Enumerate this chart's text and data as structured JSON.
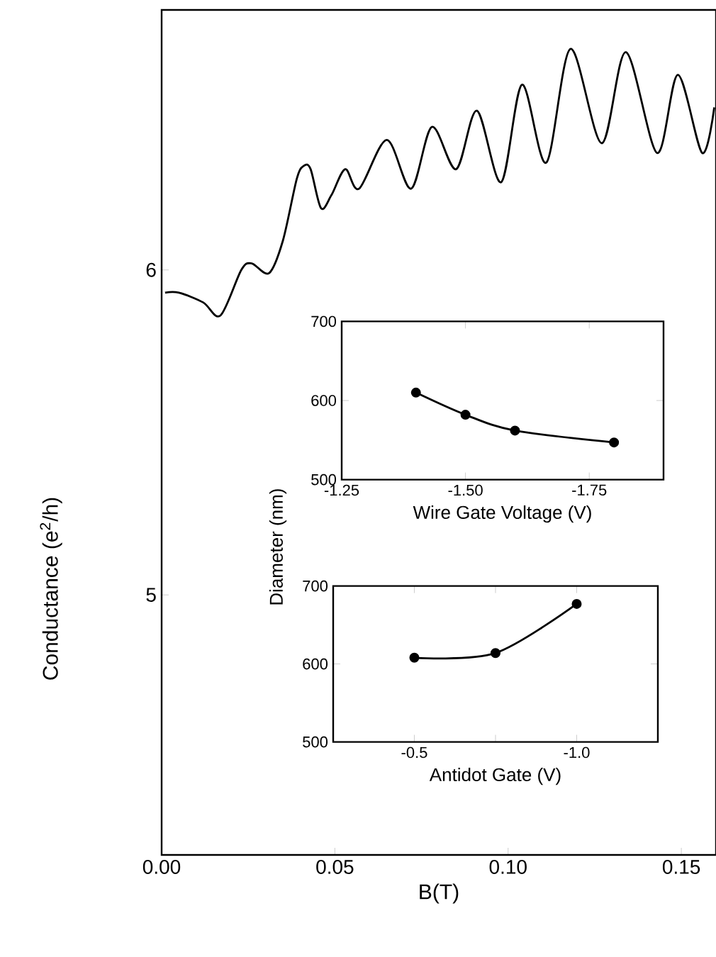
{
  "chart_data": [
    {
      "type": "line",
      "xlabel": "B(T)",
      "ylabel": "Conductance (e$^{2}$/h)",
      "xlim": [
        0,
        0.16
      ],
      "ylim": [
        4.2,
        6.8
      ],
      "xticks": [
        {
          "value": 0,
          "label": "0.00"
        },
        {
          "value": 0.05,
          "label": "0.05"
        },
        {
          "value": 0.1,
          "label": "0.10"
        },
        0.15
      ],
      "yticks": [
        5,
        6
      ],
      "marker": "none",
      "line_style": "solid",
      "series": [
        {
          "color": "#000000",
          "x": [
            0.001,
            0.005,
            0.012,
            0.017,
            0.023,
            0.026,
            0.031,
            0.035,
            0.039,
            0.041,
            0.043,
            0.046,
            0.049,
            0.053,
            0.057,
            0.065,
            0.072,
            0.078,
            0.085,
            0.091,
            0.098,
            0.104,
            0.111,
            0.118,
            0.127,
            0.134,
            0.143,
            0.149,
            0.156,
            0.1595
          ],
          "values": [
            5.93,
            5.93,
            5.9,
            5.86,
            6.0,
            6.02,
            5.99,
            6.09,
            6.28,
            6.32,
            6.31,
            6.19,
            6.23,
            6.31,
            6.25,
            6.4,
            6.25,
            6.44,
            6.31,
            6.49,
            6.27,
            6.57,
            6.33,
            6.68,
            6.39,
            6.67,
            6.36,
            6.6,
            6.36,
            6.5
          ]
        }
      ]
    },
    {
      "type": "line",
      "xlabel": "Wire Gate Voltage (V)",
      "xlim": [
        -1.25,
        -1.9
      ],
      "ylim": [
        500,
        700
      ],
      "xticks": [
        -1.25,
        {
          "value": -1.5,
          "label": "-1.50"
        },
        -1.75
      ],
      "yticks": [
        500,
        600,
        700
      ],
      "marker": "circle",
      "line_style": "solid",
      "series": [
        {
          "color": "#000000",
          "x": [
            -1.4,
            -1.5,
            -1.6,
            -1.8
          ],
          "values": [
            610,
            582,
            562,
            547
          ]
        }
      ]
    },
    {
      "type": "line",
      "xlabel": "Antidot Gate (V)",
      "ylabel": "Diameter (nm)",
      "xlim": [
        -0.25,
        -1.25
      ],
      "ylim": [
        500,
        700
      ],
      "xticks": [
        -0.5,
        {
          "value": -0.75,
          "label": null
        },
        {
          "value": -1.0,
          "label": "-1.0"
        }
      ],
      "yticks": [
        500,
        600,
        700
      ],
      "marker": "circle",
      "line_style": "solid",
      "series": [
        {
          "color": "#000000",
          "x": [
            -0.5,
            -0.75,
            -1.0
          ],
          "values": [
            608,
            614,
            677
          ]
        }
      ]
    }
  ]
}
